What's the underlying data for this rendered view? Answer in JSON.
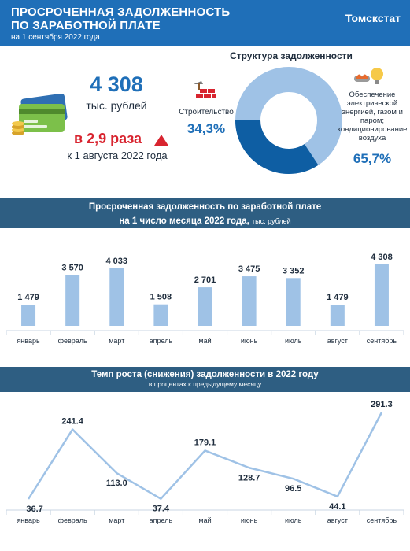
{
  "header": {
    "title_line1": "ПРОСРОЧЕННАЯ ЗАДОЛЖЕННОСТЬ",
    "title_line2": "ПО ЗАРАБОТНОЙ ПЛАТЕ",
    "date": "на 1 сентября 2022 года",
    "org": "Томскстат"
  },
  "summary": {
    "total": "4 308",
    "unit": "тыс. рублей",
    "growth": "в 2,9 раза",
    "since": "к 1 августа 2022 года"
  },
  "structure": {
    "title": "Структура задолженности",
    "construction_label": "Строительство",
    "construction_pct": "34,3%",
    "energy_label_lines": [
      "Обеспечение",
      "электрической",
      "энергией, газом и",
      "паром;",
      "кондиционирование",
      "воздуха"
    ],
    "energy_pct": "65,7%",
    "colors": {
      "construction": "#0e5ea3",
      "energy": "#9fc2e6"
    }
  },
  "chart_data": [
    {
      "type": "bar",
      "title": "Просроченная задолженность по заработной плате",
      "title_line2": "на 1 число месяца 2022 года,",
      "unit_label": "тыс. рублей",
      "categories": [
        "январь",
        "февраль",
        "март",
        "апрель",
        "май",
        "июнь",
        "июль",
        "август",
        "сентябрь"
      ],
      "values": [
        1479,
        3570,
        4033,
        1508,
        2701,
        3475,
        3352,
        1479,
        4308
      ],
      "value_labels": [
        "1 479",
        "3 570",
        "4 033",
        "1 508",
        "2 701",
        "3 475",
        "3 352",
        "1 479",
        "4 308"
      ],
      "ylim": [
        0,
        4308
      ],
      "grid": false,
      "bar_color": "#9fc2e6"
    },
    {
      "type": "line",
      "title": "Темп роста (снижения) задолженности в 2022 году",
      "subtitle": "в процентах  к предыдущему месяцу",
      "categories": [
        "январь",
        "февраль",
        "март",
        "апрель",
        "май",
        "июнь",
        "июль",
        "август",
        "сентябрь"
      ],
      "values": [
        36.7,
        241.4,
        113.0,
        37.4,
        179.1,
        128.7,
        96.5,
        44.1,
        291.3
      ],
      "value_labels": [
        "36.7",
        "241.4",
        "113.0",
        "37.4",
        "179.1",
        "128.7",
        "96.5",
        "44.1",
        "291.3"
      ],
      "ylim": [
        36.7,
        291.3
      ],
      "grid": false,
      "line_color": "#9fc2e6"
    }
  ]
}
